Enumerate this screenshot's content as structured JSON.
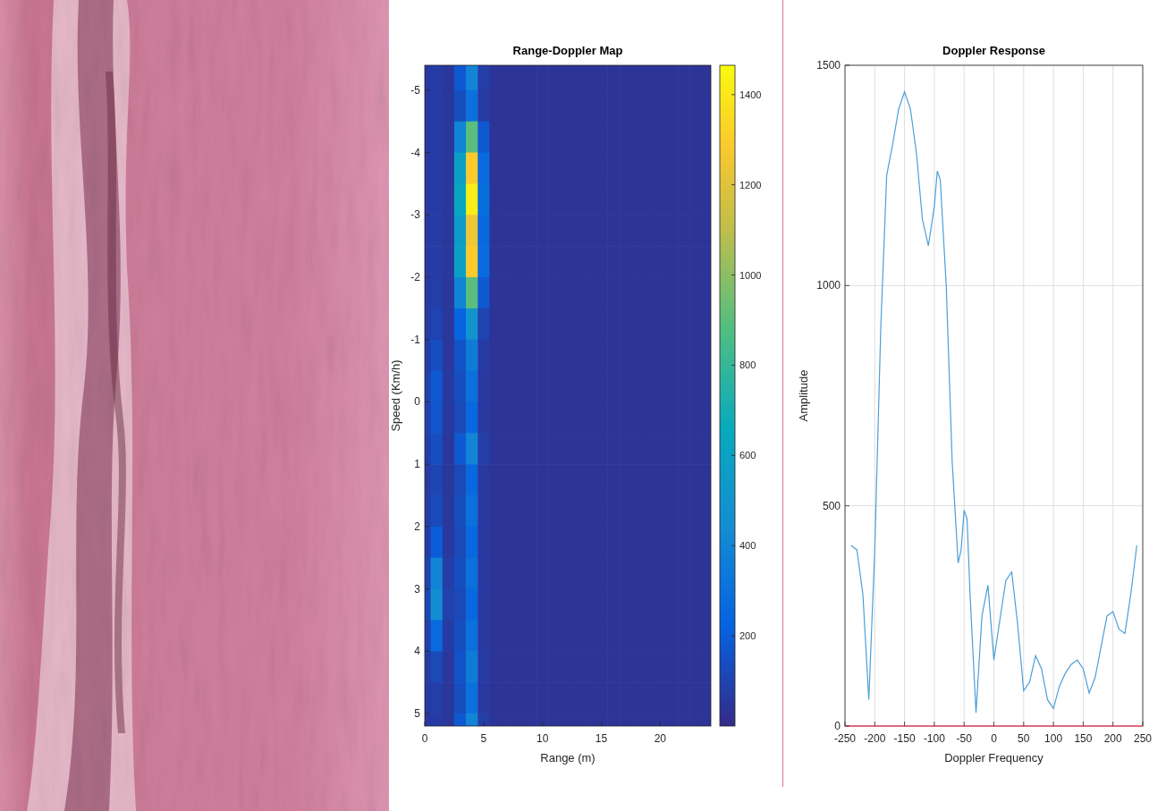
{
  "chart_data": [
    {
      "type": "heatmap",
      "title": "Range-Doppler Map",
      "x_label": "Range (m)",
      "y_label": "Speed (Km/h)",
      "x": [
        0,
        1,
        2,
        3,
        4,
        5,
        6,
        7,
        8,
        9,
        10,
        11,
        12,
        13,
        14,
        15,
        16,
        17,
        18,
        19,
        20,
        21,
        22,
        23,
        24
      ],
      "y": [
        -5.25,
        -4.75,
        -4.25,
        -3.75,
        -3.25,
        -2.75,
        -2.25,
        -1.75,
        -1.25,
        -0.75,
        -0.25,
        0.25,
        0.75,
        1.25,
        1.75,
        2.25,
        2.75,
        3.25,
        3.75,
        4.25,
        4.75,
        5.25
      ],
      "cells": [
        [
          60,
          70,
          50,
          180,
          400,
          80,
          40,
          40,
          40,
          40,
          40,
          40,
          40,
          40,
          40,
          40,
          40,
          40,
          40,
          40,
          40,
          40,
          40,
          40,
          40
        ],
        [
          60,
          70,
          50,
          140,
          300,
          70,
          40,
          40,
          40,
          40,
          40,
          40,
          40,
          40,
          40,
          40,
          40,
          40,
          40,
          40,
          40,
          40,
          40,
          40,
          40
        ],
        [
          60,
          70,
          50,
          400,
          900,
          180,
          40,
          40,
          40,
          40,
          40,
          40,
          40,
          40,
          40,
          40,
          40,
          40,
          40,
          40,
          40,
          40,
          40,
          40,
          40
        ],
        [
          60,
          70,
          50,
          580,
          1300,
          260,
          40,
          40,
          40,
          40,
          40,
          40,
          40,
          40,
          40,
          40,
          40,
          40,
          40,
          40,
          40,
          40,
          40,
          40,
          40
        ],
        [
          60,
          70,
          50,
          630,
          1420,
          280,
          40,
          40,
          40,
          40,
          40,
          40,
          40,
          40,
          40,
          40,
          40,
          40,
          40,
          40,
          40,
          40,
          40,
          40,
          40
        ],
        [
          60,
          70,
          50,
          560,
          1250,
          250,
          40,
          40,
          40,
          40,
          40,
          40,
          40,
          40,
          40,
          40,
          40,
          40,
          40,
          40,
          40,
          40,
          40,
          40,
          40
        ],
        [
          60,
          70,
          50,
          580,
          1300,
          260,
          40,
          40,
          40,
          40,
          40,
          40,
          40,
          40,
          40,
          40,
          40,
          40,
          40,
          40,
          40,
          40,
          40,
          40,
          40
        ],
        [
          60,
          80,
          50,
          400,
          900,
          180,
          40,
          40,
          40,
          40,
          40,
          40,
          40,
          40,
          40,
          40,
          40,
          40,
          40,
          40,
          40,
          40,
          40,
          40,
          40
        ],
        [
          70,
          100,
          50,
          230,
          500,
          100,
          40,
          40,
          40,
          40,
          40,
          40,
          40,
          40,
          40,
          40,
          40,
          40,
          40,
          40,
          40,
          40,
          40,
          40,
          40
        ],
        [
          80,
          140,
          50,
          160,
          350,
          70,
          40,
          40,
          40,
          40,
          40,
          40,
          40,
          40,
          40,
          40,
          40,
          40,
          40,
          40,
          40,
          40,
          40,
          40,
          40
        ],
        [
          90,
          180,
          60,
          140,
          300,
          60,
          40,
          40,
          40,
          40,
          40,
          40,
          40,
          40,
          40,
          40,
          40,
          40,
          40,
          40,
          40,
          40,
          40,
          40,
          40
        ],
        [
          90,
          170,
          60,
          120,
          250,
          60,
          40,
          40,
          40,
          40,
          40,
          40,
          40,
          40,
          40,
          40,
          40,
          40,
          40,
          40,
          40,
          40,
          40,
          40,
          40
        ],
        [
          80,
          140,
          50,
          180,
          400,
          80,
          40,
          40,
          40,
          40,
          40,
          40,
          40,
          40,
          40,
          40,
          40,
          40,
          40,
          40,
          40,
          40,
          40,
          40,
          40
        ],
        [
          70,
          110,
          50,
          120,
          250,
          60,
          40,
          40,
          40,
          40,
          40,
          40,
          40,
          40,
          40,
          40,
          40,
          40,
          40,
          40,
          40,
          40,
          40,
          40,
          40
        ],
        [
          70,
          130,
          50,
          140,
          300,
          60,
          40,
          40,
          40,
          40,
          40,
          40,
          40,
          40,
          40,
          40,
          40,
          40,
          40,
          40,
          40,
          40,
          40,
          40,
          40
        ],
        [
          80,
          200,
          60,
          120,
          250,
          60,
          40,
          40,
          40,
          40,
          40,
          40,
          40,
          40,
          40,
          40,
          40,
          40,
          40,
          40,
          40,
          40,
          40,
          40,
          40
        ],
        [
          100,
          400,
          80,
          140,
          300,
          60,
          40,
          40,
          40,
          40,
          40,
          40,
          40,
          40,
          40,
          40,
          40,
          40,
          40,
          40,
          40,
          40,
          40,
          40,
          40
        ],
        [
          110,
          450,
          90,
          120,
          250,
          60,
          40,
          40,
          40,
          40,
          40,
          40,
          40,
          40,
          40,
          40,
          40,
          40,
          40,
          40,
          40,
          40,
          40,
          40,
          40
        ],
        [
          90,
          260,
          70,
          140,
          300,
          60,
          40,
          40,
          40,
          40,
          40,
          40,
          40,
          40,
          40,
          40,
          40,
          40,
          40,
          40,
          40,
          40,
          40,
          40,
          40
        ],
        [
          70,
          120,
          50,
          160,
          350,
          70,
          40,
          40,
          40,
          40,
          40,
          40,
          40,
          40,
          40,
          40,
          40,
          40,
          40,
          40,
          40,
          40,
          40,
          40,
          40
        ],
        [
          60,
          80,
          50,
          140,
          300,
          60,
          40,
          40,
          40,
          40,
          40,
          40,
          40,
          40,
          40,
          40,
          40,
          40,
          40,
          40,
          40,
          40,
          40,
          40,
          40
        ],
        [
          60,
          70,
          50,
          180,
          400,
          80,
          40,
          40,
          40,
          40,
          40,
          40,
          40,
          40,
          40,
          40,
          40,
          40,
          40,
          40,
          40,
          40,
          40,
          40,
          40
        ]
      ],
      "xlim": [
        0,
        24.3
      ],
      "ylim": [
        5.2,
        -5.4
      ],
      "xticks": [
        0,
        5,
        10,
        15,
        20
      ],
      "yticks": [
        -5,
        -4,
        -3,
        -2,
        -1,
        0,
        1,
        2,
        3,
        4,
        5
      ],
      "colorbar_range": [
        0,
        1465
      ],
      "colorbar_ticks": [
        200,
        400,
        600,
        800,
        1000,
        1200,
        1400
      ],
      "grid": false
    },
    {
      "type": "line",
      "title": "Doppler Response",
      "x_label": "Doppler Frequency",
      "y_label": "Amplitude",
      "x": [
        -240,
        -230,
        -220,
        -210,
        -200,
        -190,
        -180,
        -170,
        -160,
        -150,
        -140,
        -130,
        -120,
        -110,
        -100,
        -95,
        -90,
        -80,
        -70,
        -60,
        -55,
        -50,
        -45,
        -40,
        -30,
        -20,
        -10,
        0,
        10,
        20,
        30,
        40,
        50,
        60,
        70,
        80,
        90,
        100,
        110,
        120,
        130,
        140,
        150,
        160,
        170,
        180,
        190,
        200,
        210,
        220,
        230,
        240
      ],
      "values": [
        410,
        400,
        300,
        60,
        400,
        900,
        1250,
        1320,
        1400,
        1440,
        1400,
        1300,
        1150,
        1090,
        1180,
        1260,
        1240,
        1000,
        600,
        370,
        400,
        490,
        470,
        300,
        30,
        250,
        320,
        150,
        240,
        330,
        350,
        230,
        80,
        100,
        160,
        130,
        60,
        40,
        90,
        120,
        140,
        150,
        130,
        75,
        110,
        180,
        250,
        260,
        220,
        210,
        300,
        410
      ],
      "color": "#4d9fd6",
      "xlim": [
        -250,
        250
      ],
      "ylim": [
        0,
        1500
      ],
      "xticks": [
        -250,
        -200,
        -150,
        -100,
        -50,
        0,
        50,
        100,
        150,
        200,
        250
      ],
      "yticks": [
        0,
        500,
        1000,
        1500
      ],
      "grid": true
    }
  ]
}
